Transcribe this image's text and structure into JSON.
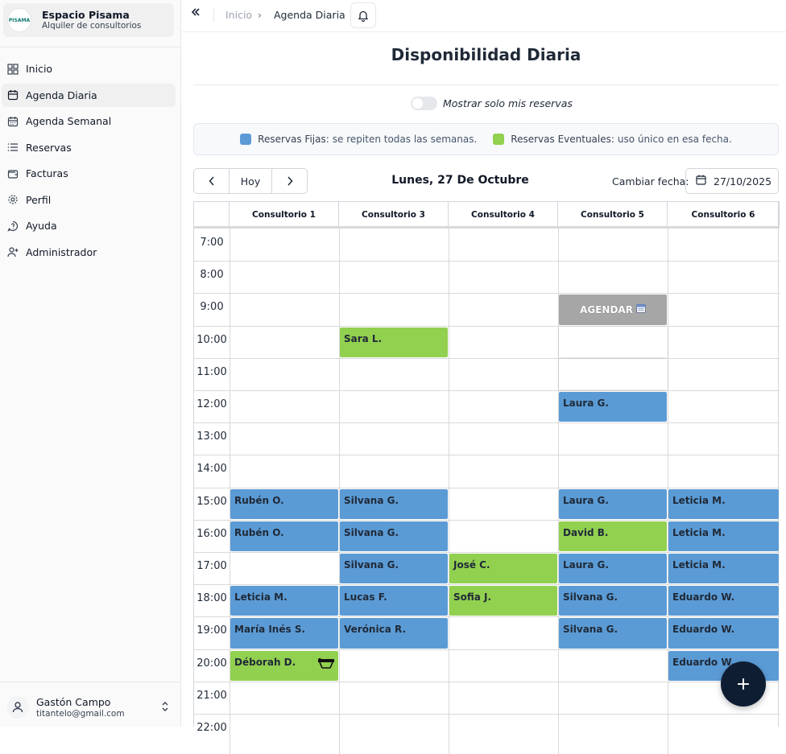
{
  "brand": {
    "name": "Espacio Pisama",
    "subtitle": "Alquiler de consultorios",
    "logo_text": "PISAMA"
  },
  "sidebar": {
    "items": [
      {
        "label": "Inicio",
        "icon": "grid-icon",
        "active": false
      },
      {
        "label": "Agenda Diaria",
        "icon": "calendar-icon",
        "active": true
      },
      {
        "label": "Agenda Semanal",
        "icon": "calendar-week-icon",
        "active": false
      },
      {
        "label": "Reservas",
        "icon": "list-icon",
        "active": false
      },
      {
        "label": "Facturas",
        "icon": "wallet-icon",
        "active": false
      },
      {
        "label": "Perfil",
        "icon": "gear-icon",
        "active": false
      },
      {
        "label": "Ayuda",
        "icon": "help-icon",
        "active": false
      },
      {
        "label": "Administrador",
        "icon": "user-plus-icon",
        "active": false
      }
    ]
  },
  "user": {
    "name": "Gastón Campo",
    "email": "titantelo@gmail.com"
  },
  "breadcrumb": {
    "home": "Inicio",
    "separator": "›",
    "current": "Agenda Diaria"
  },
  "page": {
    "title": "Disponibilidad Diaria"
  },
  "filter": {
    "toggle_label": "Mostrar solo mis reservas",
    "enabled": false
  },
  "legend": {
    "fija": {
      "label": "Reservas Fijas:",
      "desc": "se repiten todas las semanas.",
      "color": "#5b9bd5"
    },
    "eventual": {
      "label": "Reservas Eventuales:",
      "desc": "uso único en esa fecha.",
      "color": "#92d050"
    }
  },
  "datenav": {
    "prev": "‹",
    "today": "Hoy",
    "next": "›",
    "heading": "Lunes, 27 De Octubre",
    "change_label": "Cambiar fecha:",
    "date_value": "27/10/2025"
  },
  "schedule": {
    "rooms": [
      "Consultorio 1",
      "Consultorio 3",
      "Consultorio 4",
      "Consultorio 5",
      "Consultorio 6"
    ],
    "times": [
      "7:00",
      "8:00",
      "9:00",
      "10:00",
      "11:00",
      "12:00",
      "13:00",
      "14:00",
      "15:00",
      "16:00",
      "17:00",
      "18:00",
      "19:00",
      "20:00",
      "21:00",
      "22:00"
    ],
    "agendar": {
      "label": "AGENDAR",
      "icon": "calendar-emoji",
      "room": 3,
      "hour": 2
    },
    "reservations": [
      {
        "room": 1,
        "hour": 3,
        "name": "Sara L.",
        "type": "eventual"
      },
      {
        "room": 3,
        "hour": 5,
        "name": "Laura G.",
        "type": "fija"
      },
      {
        "room": 0,
        "hour": 8,
        "name": "Rubén O.",
        "type": "fija"
      },
      {
        "room": 1,
        "hour": 8,
        "name": "Silvana G.",
        "type": "fija"
      },
      {
        "room": 3,
        "hour": 8,
        "name": "Laura G.",
        "type": "fija"
      },
      {
        "room": 4,
        "hour": 8,
        "name": "Leticia M.",
        "type": "fija"
      },
      {
        "room": 0,
        "hour": 9,
        "name": "Rubén O.",
        "type": "fija"
      },
      {
        "room": 1,
        "hour": 9,
        "name": "Silvana G.",
        "type": "fija"
      },
      {
        "room": 3,
        "hour": 9,
        "name": "David B.",
        "type": "eventual"
      },
      {
        "room": 4,
        "hour": 9,
        "name": "Leticia M.",
        "type": "fija"
      },
      {
        "room": 1,
        "hour": 10,
        "name": "Silvana G.",
        "type": "fija"
      },
      {
        "room": 2,
        "hour": 10,
        "name": "José C.",
        "type": "eventual"
      },
      {
        "room": 3,
        "hour": 10,
        "name": "Laura G.",
        "type": "fija"
      },
      {
        "room": 4,
        "hour": 10,
        "name": "Leticia M.",
        "type": "fija"
      },
      {
        "room": 0,
        "hour": 11,
        "name": "Leticia M.",
        "type": "fija"
      },
      {
        "room": 1,
        "hour": 11,
        "name": "Lucas F.",
        "type": "fija"
      },
      {
        "room": 2,
        "hour": 11,
        "name": "Sofia J.",
        "type": "eventual"
      },
      {
        "room": 3,
        "hour": 11,
        "name": "Silvana G.",
        "type": "fija"
      },
      {
        "room": 4,
        "hour": 11,
        "name": "Eduardo W.",
        "type": "fija"
      },
      {
        "room": 0,
        "hour": 12,
        "name": "María Inés S.",
        "type": "fija"
      },
      {
        "room": 1,
        "hour": 12,
        "name": "Verónica R.",
        "type": "fija"
      },
      {
        "room": 3,
        "hour": 12,
        "name": "Silvana G.",
        "type": "fija"
      },
      {
        "room": 4,
        "hour": 12,
        "name": "Eduardo W.",
        "type": "fija"
      },
      {
        "room": 0,
        "hour": 13,
        "name": "Déborah D.",
        "type": "eventual",
        "extra_icon": "massage-table-icon"
      },
      {
        "room": 4,
        "hour": 13,
        "name": "Eduardo W.",
        "type": "fija"
      }
    ]
  },
  "fab": {
    "label": "+"
  }
}
